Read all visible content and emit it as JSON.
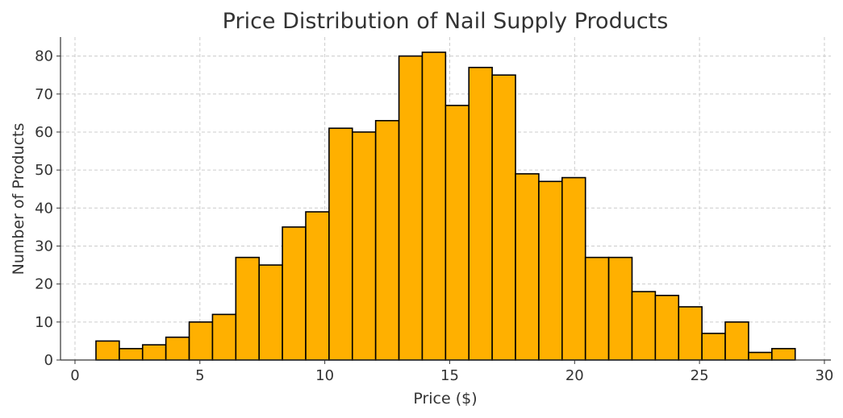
{
  "chart_data": {
    "type": "bar",
    "subtype": "histogram",
    "title": "Price Distribution of Nail Supply Products",
    "xlabel": "Price ($)",
    "ylabel": "Number of Products",
    "bin_start": 0.84,
    "bin_width": 0.933,
    "values": [
      5,
      3,
      4,
      6,
      10,
      12,
      27,
      25,
      35,
      39,
      61,
      60,
      63,
      80,
      81,
      67,
      77,
      75,
      49,
      47,
      48,
      27,
      27,
      18,
      17,
      14,
      7,
      10,
      2,
      3
    ],
    "xlim": [
      -0.58,
      30.26
    ],
    "ylim": [
      0,
      85
    ],
    "xticks": [
      0,
      5,
      10,
      15,
      20,
      25,
      30
    ],
    "yticks": [
      0,
      10,
      20,
      30,
      40,
      50,
      60,
      70,
      80
    ],
    "grid": true,
    "bar_color": "#FFB000",
    "edge_color": "#000000"
  }
}
